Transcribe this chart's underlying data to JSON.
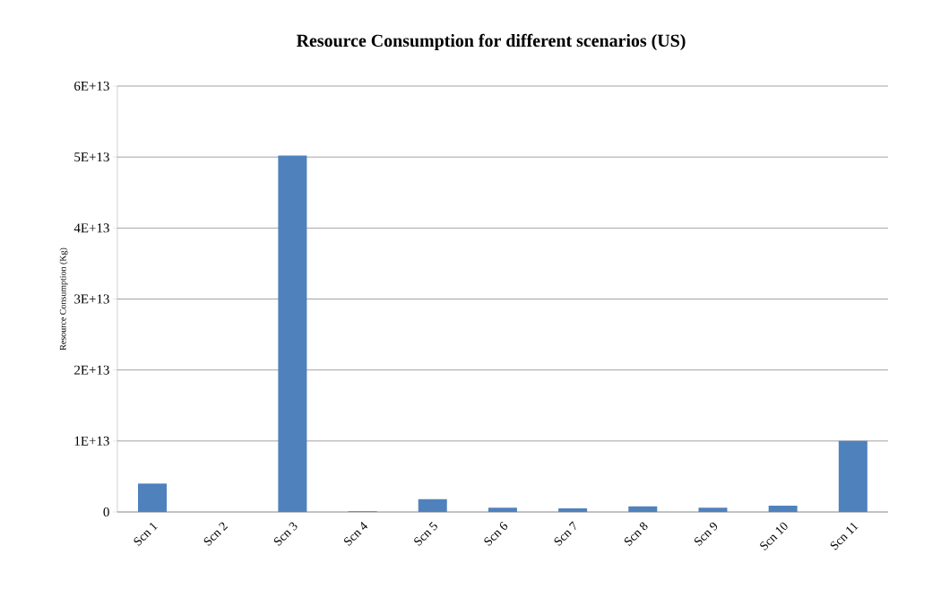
{
  "chart_data": {
    "type": "bar",
    "title": "Resource Consumption for different scenarios (US)",
    "ylabel": "Resource Consumption (Kg)",
    "categories": [
      "Scn 1",
      "Scn 2",
      "Scn 3",
      "Scn 4",
      "Scn 5",
      "Scn 6",
      "Scn 7",
      "Scn 8",
      "Scn 9",
      "Scn 10",
      "Scn 11"
    ],
    "values": [
      4000000000000.0,
      0,
      50200000000000.0,
      100000000000.0,
      1800000000000.0,
      600000000000.0,
      500000000000.0,
      800000000000.0,
      600000000000.0,
      900000000000.0,
      10000000000000.0
    ],
    "color": "#4f81bd",
    "ylim": [
      0,
      60000000000000.0
    ],
    "yticks": [
      0,
      {
        "value": 10000000000000.0,
        "label": "1E+13"
      },
      {
        "value": 20000000000000.0,
        "label": "2E+13"
      },
      {
        "value": 30000000000000.0,
        "label": "3E+13"
      },
      {
        "value": 40000000000000.0,
        "label": "4E+13"
      },
      {
        "value": 50000000000000.0,
        "label": "5E+13"
      },
      {
        "value": 60000000000000.0,
        "label": "6E+13"
      }
    ],
    "grid": "y"
  }
}
